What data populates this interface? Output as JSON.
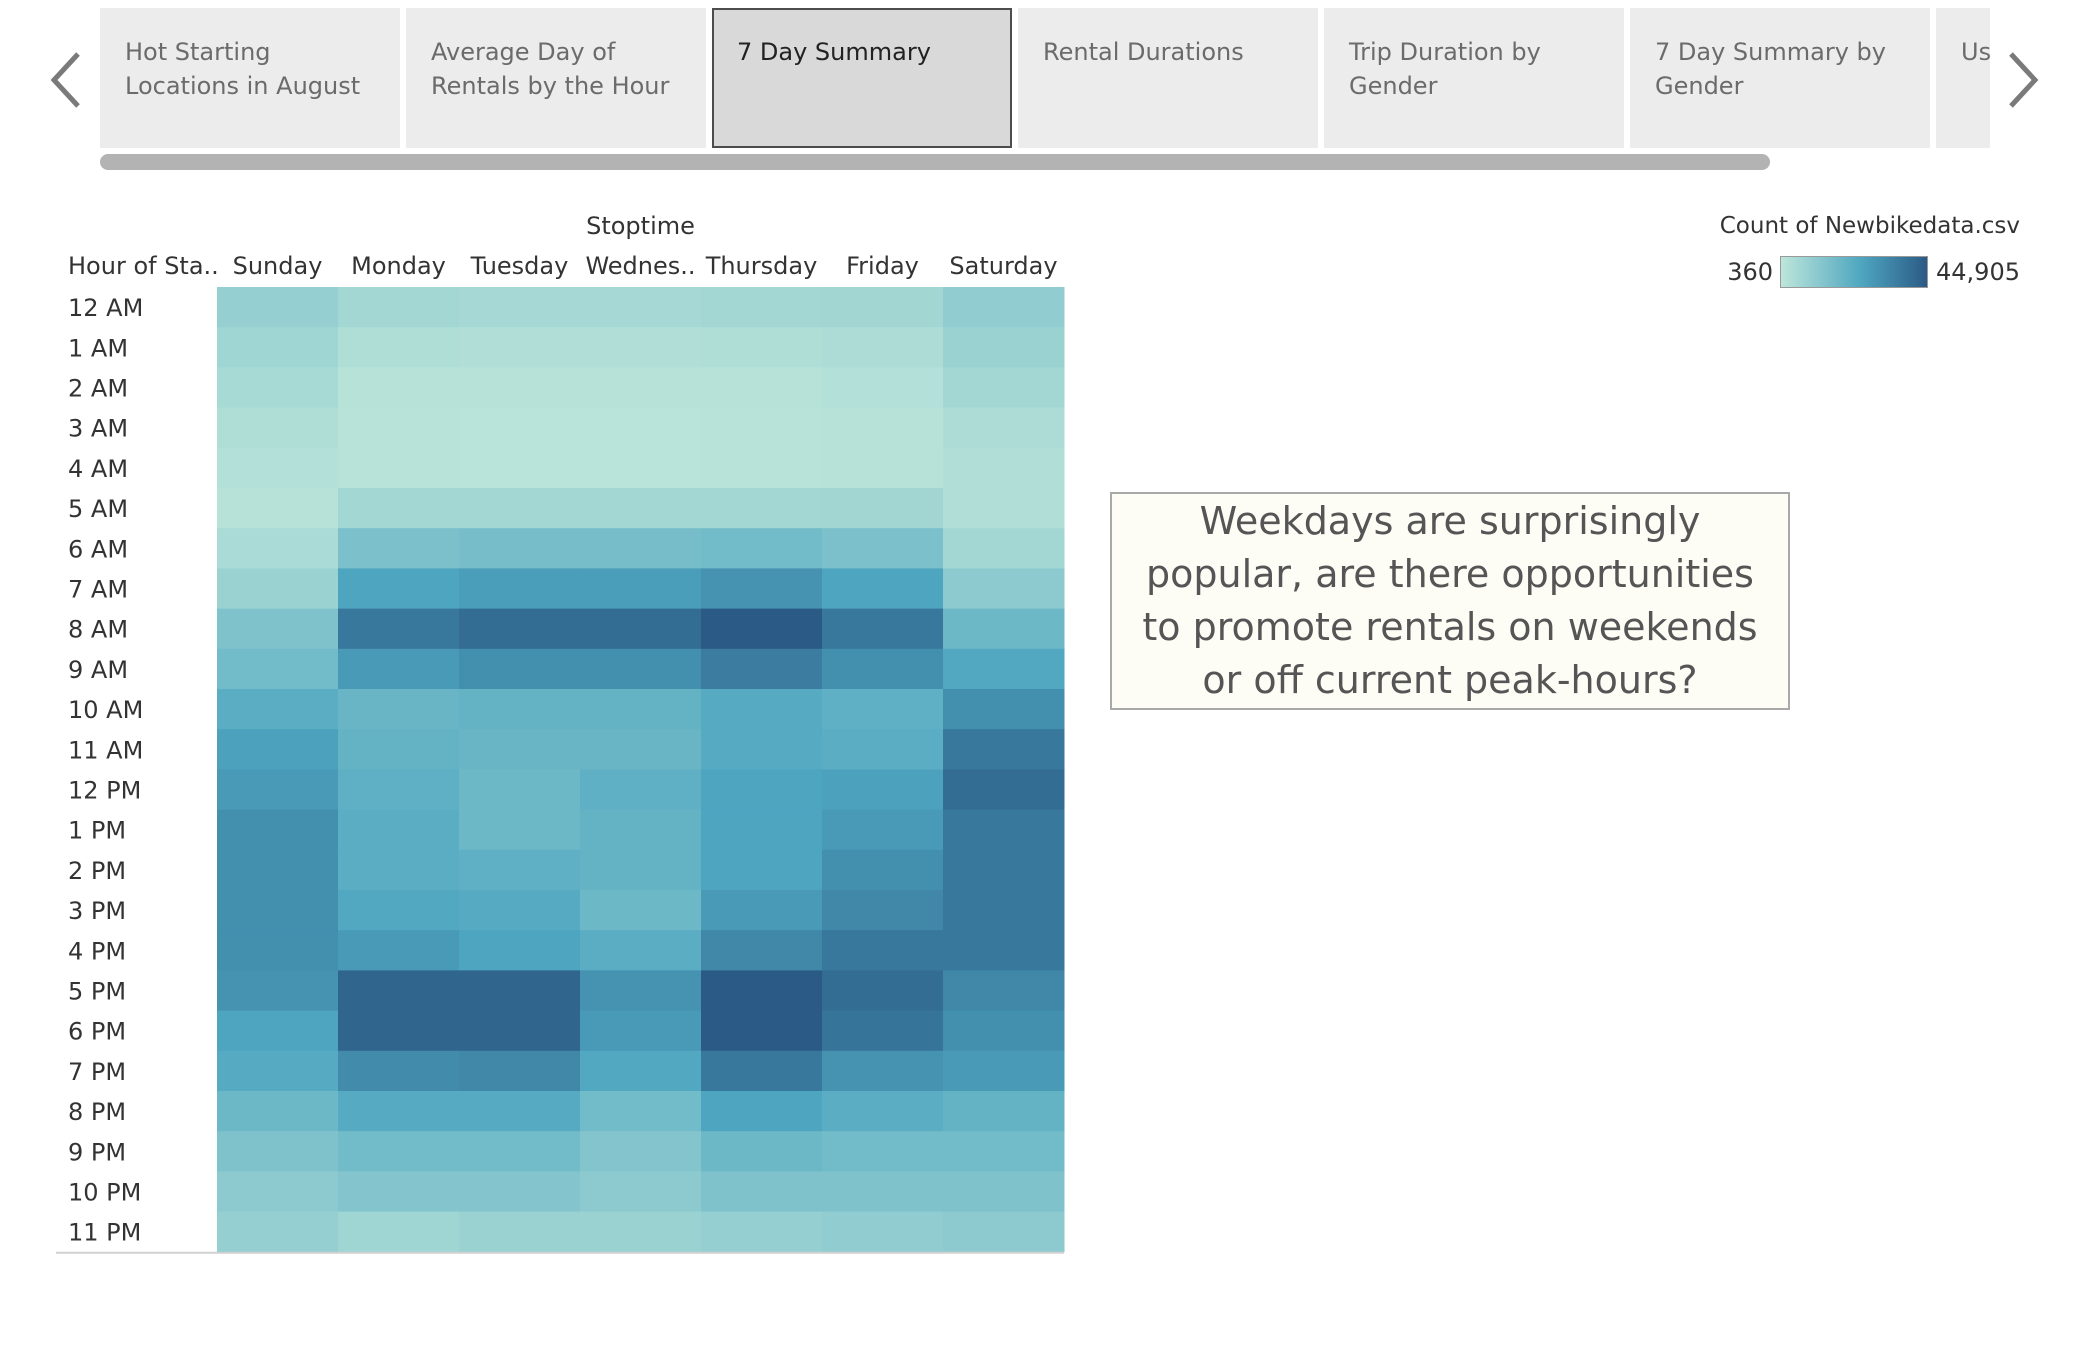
{
  "tabs": [
    {
      "label": "Hot Starting Locations in August",
      "active": false
    },
    {
      "label": "Average Day of Rentals by the Hour",
      "active": false
    },
    {
      "label": "7 Day Summary",
      "active": true
    },
    {
      "label": "Rental Durations",
      "active": false
    },
    {
      "label": "Trip Duration by Gender",
      "active": false
    },
    {
      "label": "7 Day Summary by Gender",
      "active": false
    },
    {
      "label": "Us by",
      "active": false
    }
  ],
  "icons": {
    "left": "chevron-left-icon",
    "right": "chevron-right-icon"
  },
  "legend": {
    "title": "Count of Newbikedata.csv",
    "min_label": "360",
    "max_label": "44,905",
    "color_low": "#bde6da",
    "color_mid": "#4ea6c0",
    "color_high": "#2b5a86"
  },
  "annotation": {
    "text": "Weekdays are surprisingly popular, are there opportunities to promote rentals on weekends or off current peak-hours?"
  },
  "chart_data": {
    "type": "heatmap",
    "title": "",
    "column_header": "Stoptime",
    "row_header": "Hour of Sta..",
    "columns": [
      "Sunday",
      "Monday",
      "Tuesday",
      "Wednes..",
      "Thursday",
      "Friday",
      "Saturday"
    ],
    "rows": [
      "12 AM",
      "1 AM",
      "2 AM",
      "3 AM",
      "4 AM",
      "5 AM",
      "6 AM",
      "7 AM",
      "8 AM",
      "9 AM",
      "10 AM",
      "11 AM",
      "12 PM",
      "1 PM",
      "2 PM",
      "3 PM",
      "4 PM",
      "5 PM",
      "6 PM",
      "7 PM",
      "8 PM",
      "9 PM",
      "10 PM",
      "11 PM"
    ],
    "value_range": [
      360,
      44905
    ],
    "values": [
      [
        9000,
        6000,
        5500,
        5500,
        6000,
        6500,
        10000
      ],
      [
        7000,
        3500,
        3000,
        3000,
        3500,
        4000,
        8000
      ],
      [
        5000,
        2000,
        1800,
        1800,
        2000,
        2500,
        6000
      ],
      [
        3500,
        1500,
        1200,
        1200,
        1500,
        1800,
        4000
      ],
      [
        2500,
        1500,
        1200,
        1200,
        1500,
        1800,
        3000
      ],
      [
        2000,
        6000,
        6000,
        6000,
        6000,
        6500,
        3000
      ],
      [
        4500,
        15000,
        16000,
        16000,
        17000,
        15000,
        6000
      ],
      [
        8000,
        25000,
        27000,
        27000,
        30000,
        25000,
        11000
      ],
      [
        14000,
        37000,
        40000,
        40000,
        44905,
        37000,
        18000
      ],
      [
        17000,
        28000,
        31000,
        31000,
        36000,
        31000,
        24000
      ],
      [
        22000,
        19000,
        20000,
        20000,
        23000,
        21000,
        31000
      ],
      [
        26000,
        20000,
        19000,
        19000,
        23000,
        22000,
        37000
      ],
      [
        28000,
        21000,
        18000,
        21000,
        25000,
        26000,
        40000
      ],
      [
        31000,
        22000,
        18000,
        20000,
        25000,
        28000,
        37000
      ],
      [
        31000,
        22000,
        21000,
        20000,
        25000,
        31000,
        37000
      ],
      [
        31000,
        24000,
        23000,
        18000,
        28000,
        33000,
        37000
      ],
      [
        31000,
        28000,
        25000,
        22000,
        33000,
        37000,
        37000
      ],
      [
        30000,
        42000,
        42000,
        30000,
        44905,
        40000,
        33000
      ],
      [
        25000,
        42000,
        42000,
        28000,
        44905,
        38000,
        31000
      ],
      [
        23000,
        32000,
        33000,
        24000,
        37000,
        30000,
        28000
      ],
      [
        18000,
        23000,
        23000,
        17000,
        25000,
        22000,
        20000
      ],
      [
        14000,
        17000,
        17000,
        13000,
        18000,
        17000,
        17000
      ],
      [
        11000,
        13000,
        13000,
        11000,
        14000,
        14000,
        14000
      ],
      [
        9000,
        7000,
        8000,
        8000,
        9000,
        10000,
        11000
      ]
    ]
  }
}
